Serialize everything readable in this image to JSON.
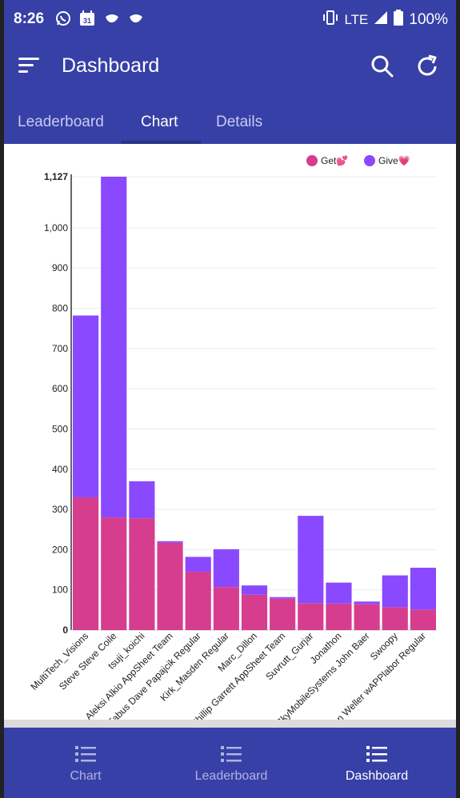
{
  "status": {
    "time": "8:26",
    "network": "LTE",
    "battery": "100%",
    "icons": [
      "whatsapp-icon",
      "calendar-icon",
      "bird-icon",
      "bird-icon",
      "vibrate-icon",
      "signal-icon",
      "battery-icon"
    ],
    "calendar_day": "31"
  },
  "app_bar": {
    "title": "Dashboard",
    "color": "#3740a6"
  },
  "tabs": [
    {
      "label": "Leaderboard",
      "active": false
    },
    {
      "label": "Chart",
      "active": true
    },
    {
      "label": "Details",
      "active": false
    }
  ],
  "chart_data": {
    "type": "bar",
    "stacked": true,
    "categories": [
      "MultiTech_Visions",
      "Steve Steve Coile",
      "tsuji_koichi",
      "Aleksi Alkio AppSheet Team",
      "Fabus Dave Papajcik Regular",
      "Kirk_Masden Regular",
      "Marc_Dillon",
      "Phillip Garrett AppSheet Team",
      "Suvrutt_Gurjar",
      "Jonathon",
      "SkyMobileSystems John Baer",
      "Swoopy",
      "Brian Weller wAPPlabor Regular"
    ],
    "series": [
      {
        "name": "Get💕",
        "color": "#d63d8f",
        "values": [
          330,
          280,
          278,
          217,
          145,
          107,
          88,
          78,
          67,
          66,
          65,
          57,
          51
        ]
      },
      {
        "name": "Give💗",
        "color": "#8a49ff",
        "values": [
          452,
          847,
          92,
          4,
          37,
          94,
          23,
          4,
          217,
          52,
          6,
          79,
          104
        ]
      }
    ],
    "ylim": [
      0,
      1127
    ],
    "yticks": [
      "0",
      "100",
      "200",
      "300",
      "400",
      "500",
      "600",
      "700",
      "800",
      "900",
      "1,000",
      "1,127"
    ],
    "grid": true,
    "legend_position": "top-right"
  },
  "bottom_nav": [
    {
      "label": "Chart",
      "icon": "list-icon",
      "active": false
    },
    {
      "label": "Leaderboard",
      "icon": "list-icon",
      "active": false
    },
    {
      "label": "Dashboard",
      "icon": "list-icon",
      "active": true
    }
  ]
}
